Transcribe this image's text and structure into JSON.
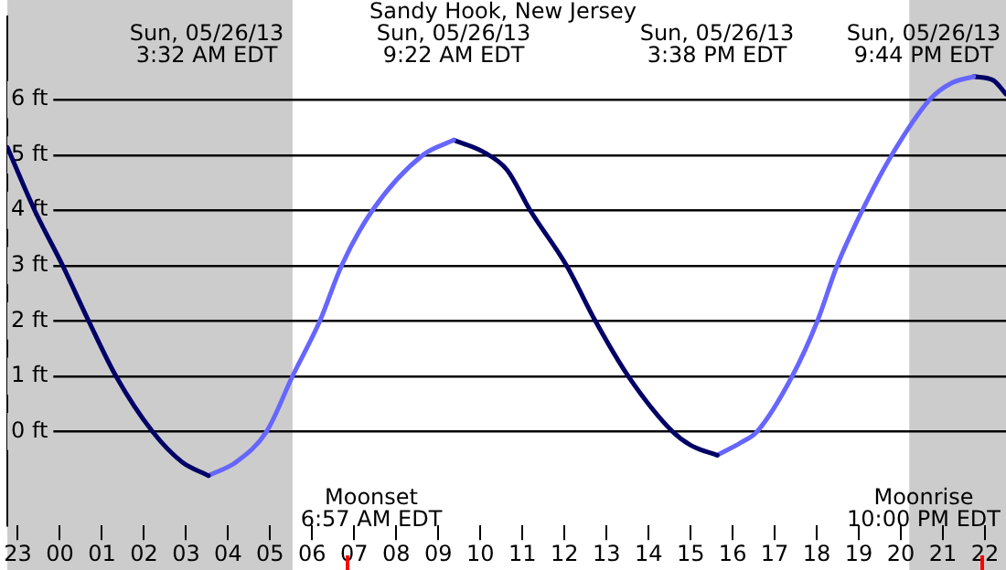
{
  "chart_data": {
    "type": "line",
    "title": "Sandy Hook, New Jersey",
    "series": [
      {
        "color": "#000066",
        "x": [
          "--05-25T22:45",
          "--05-25T23:24",
          "--05-26T00:04",
          "--05-26T00:41",
          "--05-26T01:20",
          "--05-26T02:12",
          "--05-26T02:54",
          "--05-26T03:32"
        ],
        "values": [
          5.14,
          4,
          3,
          2,
          1,
          0,
          -0.55,
          -0.8
        ]
      },
      {
        "color": "#6666ff",
        "x": [
          "--05-26T03:32",
          "--05-26T04:12",
          "--05-26T04:55",
          "--05-26T05:32",
          "--05-26T06:11",
          "--05-26T06:42",
          "--05-26T07:26",
          "--05-26T08:38",
          "--05-26T09:22"
        ],
        "values": [
          -0.8,
          -0.55,
          0,
          1,
          2,
          3,
          4,
          5,
          5.27
        ]
      },
      {
        "color": "#000066",
        "x": [
          "--05-26T09:22",
          "--05-26T10:05",
          "--05-26T10:38",
          "--05-26T11:11",
          "--05-26T12:03",
          "--05-26T12:44",
          "--05-26T13:31",
          "--05-26T14:34",
          "--05-26T15:00",
          "--05-26T15:38"
        ],
        "values": [
          5.27,
          5.05,
          4.73,
          4,
          3,
          2,
          1,
          0,
          -0.25,
          -0.43
        ]
      },
      {
        "color": "#6666ff",
        "x": [
          "--05-26T15:38",
          "--05-26T16:12",
          "--05-26T16:35",
          "--05-26T17:25",
          "--05-26T18:01",
          "--05-26T18:29",
          "--05-26T19:05",
          "--05-26T19:47",
          "--05-26T20:41",
          "--05-26T21:12",
          "--05-26T21:44"
        ],
        "values": [
          -0.43,
          -0.2,
          0,
          1,
          2,
          3,
          4,
          5,
          6,
          6.3,
          6.42
        ]
      },
      {
        "color": "#000066",
        "x": [
          "--05-26T21:44",
          "--05-26T22:12",
          "--05-26T22:30"
        ],
        "values": [
          6.42,
          6.35,
          6.1
        ]
      }
    ],
    "xlim": [
      "--05-25T22:45",
      "--05-26T22:30"
    ],
    "xticks": [
      {
        "value": "--05-25T23:00",
        "label": "23"
      },
      {
        "value": "--05-26T00:00",
        "label": "00"
      },
      {
        "value": "--05-26T01:00",
        "label": "01"
      },
      {
        "value": "--05-26T02:00",
        "label": "02"
      },
      {
        "value": "--05-26T03:00",
        "label": "03"
      },
      {
        "value": "--05-26T04:00",
        "label": "04"
      },
      {
        "value": "--05-26T05:00",
        "label": "05"
      },
      {
        "value": "--05-26T06:00",
        "label": "06"
      },
      {
        "value": "--05-26T07:00",
        "label": "07"
      },
      {
        "value": "--05-26T08:00",
        "label": "08"
      },
      {
        "value": "--05-26T09:00",
        "label": "09"
      },
      {
        "value": "--05-26T10:00",
        "label": "10"
      },
      {
        "value": "--05-26T11:00",
        "label": "11"
      },
      {
        "value": "--05-26T12:00",
        "label": "12"
      },
      {
        "value": "--05-26T13:00",
        "label": "13"
      },
      {
        "value": "--05-26T14:00",
        "label": "14"
      },
      {
        "value": "--05-26T15:00",
        "label": "15"
      },
      {
        "value": "--05-26T16:00",
        "label": "16"
      },
      {
        "value": "--05-26T17:00",
        "label": "17"
      },
      {
        "value": "--05-26T18:00",
        "label": "18"
      },
      {
        "value": "--05-26T19:00",
        "label": "19"
      },
      {
        "value": "--05-26T20:00",
        "label": "20"
      },
      {
        "value": "--05-26T21:00",
        "label": "21"
      },
      {
        "value": "--05-26T22:00",
        "label": "22"
      }
    ],
    "ylim": [
      -1.7,
      7.5
    ],
    "yticks": [
      {
        "value": 0,
        "label": "0 ft"
      },
      {
        "value": 1,
        "label": "1 ft"
      },
      {
        "value": 2,
        "label": "2 ft"
      },
      {
        "value": 3,
        "label": "3 ft"
      },
      {
        "value": 4,
        "label": "4 ft"
      },
      {
        "value": 5,
        "label": "5 ft"
      },
      {
        "value": 6,
        "label": "6 ft"
      }
    ],
    "bands": [
      {
        "axis": "x",
        "from": "--05-25T22:45",
        "to": "--05-26T05:32",
        "color": "#cccccc"
      },
      {
        "axis": "x",
        "from": "--05-26T20:12",
        "to": "--05-26T22:30",
        "color": "#cccccc"
      }
    ],
    "annotations": [
      "Sun, 05/26/13\n3:32 AM EDT",
      "Sun, 05/26/13\n9:22 AM EDT",
      "Sun, 05/26/13\n3:38 PM EDT",
      "Sun, 05/26/13\n9:44 PM EDT",
      "Moonset\n6:57 AM EDT",
      "Moonrise\n10:00 PM EDT"
    ],
    "grid": "y",
    "legend": false,
    "marker": "none",
    "line_style": "solid"
  }
}
